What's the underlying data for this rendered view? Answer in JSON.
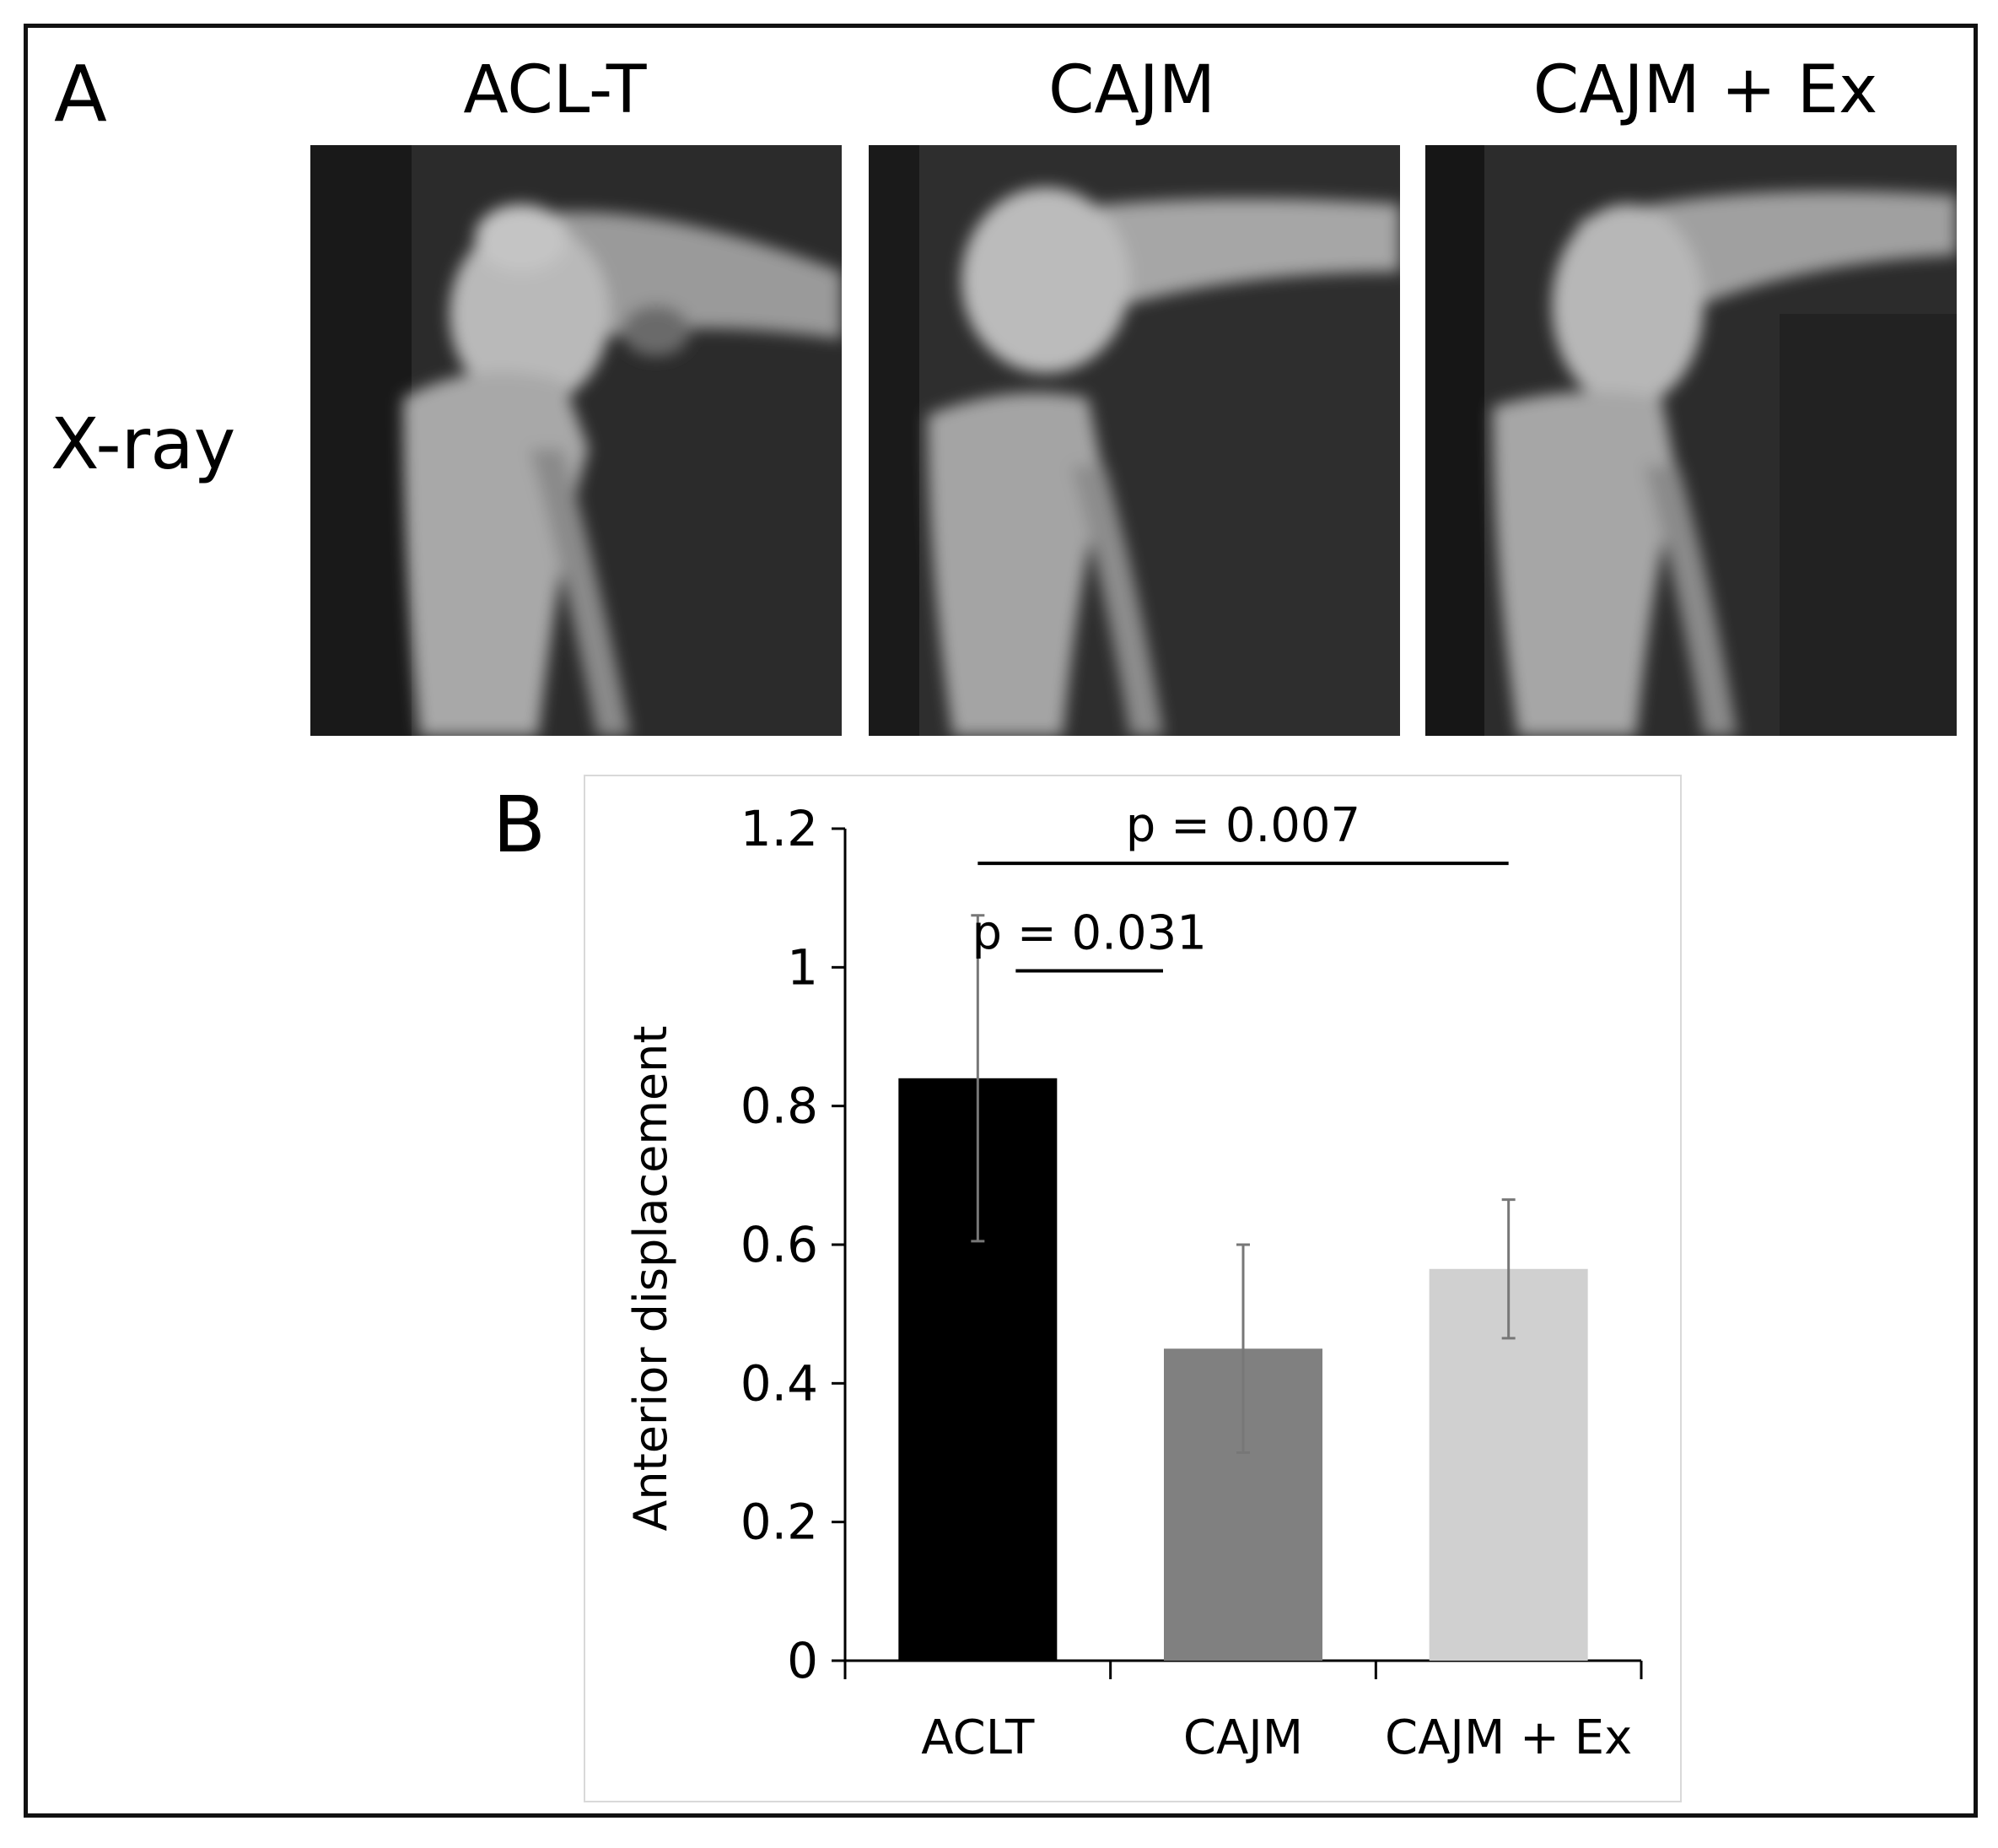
{
  "panel_a": {
    "letter": "A",
    "row_label": "X-ray",
    "columns": [
      {
        "title": "ACL-T"
      },
      {
        "title": "CAJM"
      },
      {
        "title": "CAJM + Ex"
      }
    ]
  },
  "panel_b": {
    "letter": "B"
  },
  "chart_data": {
    "type": "bar",
    "categories": [
      "ACLT",
      "CAJM",
      "CAJM + Ex"
    ],
    "values": [
      0.84,
      0.45,
      0.565
    ],
    "errors": [
      0.235,
      0.15,
      0.1
    ],
    "bar_colors": [
      "#000000",
      "#808080",
      "#d0d0d0"
    ],
    "ylabel": "Anterior displacement",
    "xlabel": "",
    "ylim": [
      0,
      1.2
    ],
    "yticks": [
      0,
      0.2,
      0.4,
      0.6,
      0.8,
      1,
      1.2
    ],
    "ytick_labels": [
      "0",
      "0.2",
      "0.4",
      "0.6",
      "0.8",
      "1",
      "1.2"
    ],
    "grid": false,
    "annotations": [
      {
        "text": "p = 0.007",
        "from": "ACLT",
        "to": "CAJM + Ex",
        "y": 1.15
      },
      {
        "text": "p = 0.031",
        "from": "ACLT",
        "to": "CAJM",
        "y": 0.995
      }
    ]
  }
}
